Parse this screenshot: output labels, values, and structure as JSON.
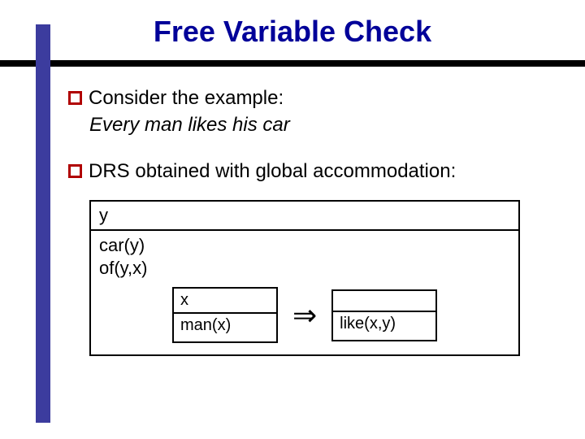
{
  "title": "Free Variable Check",
  "accent_color": "#3c3c9e",
  "bullet_border_color": "#b00000",
  "bullets": {
    "b1": "Consider the example:",
    "b1_example": "Every man likes his car",
    "b2": "DRS obtained with global accommodation:"
  },
  "drs": {
    "outer_universe": "y",
    "outer_conditions": [
      "car(y)",
      "of(y,x)"
    ],
    "left_universe": "x",
    "left_condition": "man(x)",
    "arrow": "⇒",
    "right_universe": "",
    "right_condition": "like(x,y)"
  }
}
